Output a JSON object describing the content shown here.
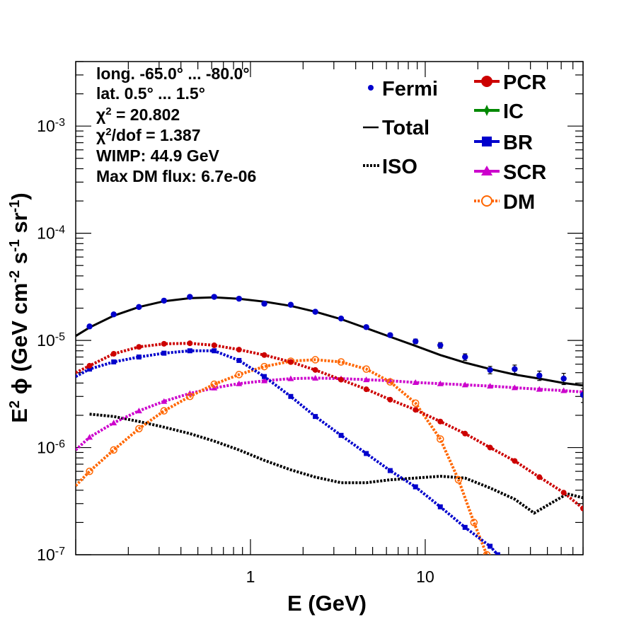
{
  "chart_data": {
    "type": "line",
    "xscale": "log",
    "yscale": "log",
    "xlim": [
      0.1,
      80
    ],
    "ylim": [
      1e-07,
      0.004
    ],
    "xlabel": "E (GeV)",
    "ylabel": {
      "base": "E",
      "sup1": "2",
      "phi": " ϕ (GeV cm",
      "sup2": "-2",
      "mid": " s",
      "sup3": "-1",
      "mid2": " sr",
      "sup4": "-1",
      "end": ")"
    },
    "x_ticks": [
      {
        "value": 1,
        "label": "1"
      },
      {
        "value": 10,
        "label": "10"
      }
    ],
    "y_ticks": [
      {
        "value": 1e-07,
        "base": "10",
        "exp": "-7"
      },
      {
        "value": 1e-06,
        "base": "10",
        "exp": "-6"
      },
      {
        "value": 1e-05,
        "base": "10",
        "exp": "-5"
      },
      {
        "value": 0.0001,
        "base": "10",
        "exp": "-4"
      },
      {
        "value": 0.001,
        "base": "10",
        "exp": "-3"
      }
    ],
    "info": [
      {
        "text": "long. -65.0° ... -80.0°"
      },
      {
        "text": "lat. 0.5° ... 1.5°"
      },
      {
        "pre": "χ",
        "sup": "2",
        "post": " = 20.802"
      },
      {
        "pre": "χ",
        "sup": "2",
        "post": "/dof = 1.387"
      },
      {
        "text": "WIMP: 44.9 GeV"
      },
      {
        "text": "Max DM flux: 6.7e-06"
      }
    ],
    "legend_left": [
      {
        "name": "Fermi",
        "style": "dot",
        "color": "#0000cc"
      },
      {
        "name": "Total",
        "style": "line",
        "color": "#000000"
      },
      {
        "name": "ISO",
        "style": "dotted",
        "color": "#000000"
      }
    ],
    "legend_right": [
      {
        "name": "PCR",
        "style": "marker-circle",
        "color": "#cc0000"
      },
      {
        "name": "IC",
        "style": "marker-star",
        "color": "#008800"
      },
      {
        "name": "BR",
        "style": "marker-square",
        "color": "#0000cc"
      },
      {
        "name": "SCR",
        "style": "marker-triangle",
        "color": "#cc00cc"
      },
      {
        "name": "DM",
        "style": "marker-open-circle",
        "color": "#ff6600"
      }
    ],
    "series": [
      {
        "name": "Fermi",
        "kind": "points",
        "color": "#0000cc",
        "x": [
          0.12,
          0.165,
          0.23,
          0.32,
          0.45,
          0.62,
          0.86,
          1.2,
          1.7,
          2.35,
          3.3,
          4.6,
          6.3,
          8.8,
          12.2,
          16.9,
          23.5,
          32.5,
          45,
          62,
          80
        ],
        "y": [
          1.35e-05,
          1.75e-05,
          2.05e-05,
          2.35e-05,
          2.55e-05,
          2.55e-05,
          2.45e-05,
          2.2e-05,
          2.15e-05,
          1.85e-05,
          1.6e-05,
          1.33e-05,
          1.12e-05,
          9.8e-06,
          9e-06,
          7e-06,
          5.3e-06,
          5.4e-06,
          4.7e-06,
          4.4e-06,
          3.1e-06
        ],
        "err": [
          0.03,
          0.03,
          0.03,
          0.03,
          0.03,
          0.03,
          0.03,
          0.03,
          0.03,
          0.03,
          0.03,
          0.04,
          0.04,
          0.05,
          0.06,
          0.07,
          0.08,
          0.09,
          0.1,
          0.12,
          0.15
        ]
      },
      {
        "name": "Total",
        "kind": "line",
        "color": "#000000",
        "x": [
          0.1,
          0.12,
          0.165,
          0.23,
          0.32,
          0.45,
          0.62,
          0.86,
          1.2,
          1.7,
          2.35,
          3.3,
          4.6,
          6.3,
          8.8,
          12.2,
          16.9,
          23.5,
          32.5,
          45,
          62,
          80
        ],
        "y": [
          1.1e-05,
          1.32e-05,
          1.7e-05,
          2.05e-05,
          2.32e-05,
          2.48e-05,
          2.52e-05,
          2.45e-05,
          2.3e-05,
          2.1e-05,
          1.85e-05,
          1.58e-05,
          1.3e-05,
          1.08e-05,
          8.9e-06,
          7.3e-06,
          6.2e-06,
          5.4e-06,
          4.8e-06,
          4.4e-06,
          4e-06,
          3.8e-06
        ]
      },
      {
        "name": "ISO",
        "kind": "dotted",
        "color": "#000000",
        "x": [
          0.12,
          0.165,
          0.23,
          0.32,
          0.45,
          0.62,
          0.86,
          1.2,
          1.7,
          2.35,
          3.3,
          4.6,
          6.3,
          8.8,
          12.2,
          16.9,
          23.5,
          32.5,
          42,
          52,
          65,
          80
        ],
        "y": [
          2.05e-06,
          1.95e-06,
          1.75e-06,
          1.55e-06,
          1.35e-06,
          1.15e-06,
          9.5e-07,
          7.6e-07,
          6.2e-07,
          5.3e-07,
          4.7e-07,
          4.7e-07,
          5e-07,
          5.2e-07,
          5.4e-07,
          5.2e-07,
          4.2e-07,
          3.3e-07,
          2.45e-07,
          3e-07,
          3.7e-07,
          3.4e-07
        ]
      },
      {
        "name": "PCR",
        "kind": "marker-line",
        "color": "#cc0000",
        "marker": "circle",
        "x": [
          0.1,
          0.12,
          0.165,
          0.23,
          0.32,
          0.45,
          0.62,
          0.86,
          1.2,
          1.7,
          2.35,
          3.3,
          4.6,
          6.3,
          8.8,
          12.2,
          16.9,
          23.5,
          32.5,
          45,
          62,
          80
        ],
        "y": [
          5e-06,
          5.8e-06,
          7.5e-06,
          8.7e-06,
          9.3e-06,
          9.4e-06,
          9e-06,
          8.2e-06,
          7.3e-06,
          6.3e-06,
          5.3e-06,
          4.3e-06,
          3.5e-06,
          2.8e-06,
          2.25e-06,
          1.75e-06,
          1.35e-06,
          1e-06,
          7.5e-07,
          5.3e-07,
          3.8e-07,
          2.7e-07
        ]
      },
      {
        "name": "BR",
        "kind": "marker-line",
        "color": "#0000cc",
        "marker": "square",
        "x": [
          0.1,
          0.12,
          0.165,
          0.23,
          0.32,
          0.45,
          0.62,
          0.86,
          1.2,
          1.7,
          2.35,
          3.3,
          4.6,
          6.3,
          8.8,
          12.2,
          16.9,
          23.5,
          26
        ],
        "y": [
          4.6e-06,
          5.4e-06,
          6.3e-06,
          7e-06,
          7.6e-06,
          8e-06,
          8e-06,
          6.5e-06,
          4.6e-06,
          3e-06,
          1.95e-06,
          1.3e-06,
          8.8e-07,
          6.1e-07,
          4.3e-07,
          2.8e-07,
          1.8e-07,
          1.2e-07,
          1e-07
        ]
      },
      {
        "name": "SCR",
        "kind": "marker-line",
        "color": "#cc00cc",
        "marker": "triangle",
        "x": [
          0.1,
          0.12,
          0.165,
          0.23,
          0.32,
          0.45,
          0.62,
          0.86,
          1.2,
          1.7,
          2.35,
          3.3,
          4.6,
          6.3,
          8.8,
          12.2,
          16.9,
          23.5,
          32.5,
          45,
          62,
          80
        ],
        "y": [
          9.5e-07,
          1.25e-06,
          1.7e-06,
          2.2e-06,
          2.7e-06,
          3.2e-06,
          3.6e-06,
          3.95e-06,
          4.2e-06,
          4.4e-06,
          4.45e-06,
          4.4e-06,
          4.3e-06,
          4.2e-06,
          4.05e-06,
          3.95e-06,
          3.85e-06,
          3.75e-06,
          3.62e-06,
          3.5e-06,
          3.4e-06,
          3.3e-06
        ]
      },
      {
        "name": "DM",
        "kind": "marker-line",
        "color": "#ff6600",
        "marker": "open-circle",
        "x": [
          0.1,
          0.12,
          0.165,
          0.23,
          0.32,
          0.45,
          0.62,
          0.86,
          1.2,
          1.7,
          2.35,
          3.3,
          4.6,
          6.3,
          8.8,
          12.2,
          15.5,
          19,
          22.5
        ],
        "y": [
          4.4e-07,
          6e-07,
          9.5e-07,
          1.5e-06,
          2.2e-06,
          3e-06,
          3.9e-06,
          4.8e-06,
          5.7e-06,
          6.4e-06,
          6.6e-06,
          6.3e-06,
          5.4e-06,
          4.1e-06,
          2.6e-06,
          1.2e-06,
          5e-07,
          2e-07,
          1e-07
        ]
      }
    ]
  }
}
